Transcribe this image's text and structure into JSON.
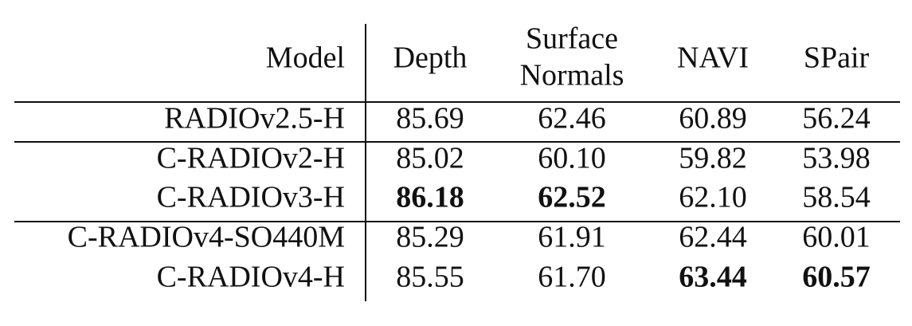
{
  "table": {
    "header": [
      "Model",
      "Depth",
      [
        "Surface",
        "Normals"
      ],
      "NAVI",
      "SPair"
    ],
    "rows": [
      {
        "model": "RADIOv2.5-H",
        "values": [
          "85.69",
          "62.46",
          "60.89",
          "56.24"
        ],
        "bold": [
          false,
          false,
          false,
          false
        ]
      },
      {
        "model": "C-RADIOv2-H",
        "values": [
          "85.02",
          "60.10",
          "59.82",
          "53.98"
        ],
        "bold": [
          false,
          false,
          false,
          false
        ]
      },
      {
        "model": "C-RADIOv3-H",
        "values": [
          "86.18",
          "62.52",
          "62.10",
          "58.54"
        ],
        "bold": [
          true,
          true,
          false,
          false
        ]
      },
      {
        "model": "C-RADIOv4-SO440M",
        "values": [
          "85.29",
          "61.91",
          "62.44",
          "60.01"
        ],
        "bold": [
          false,
          false,
          false,
          false
        ]
      },
      {
        "model": "C-RADIOv4-H",
        "values": [
          "85.55",
          "61.70",
          "63.44",
          "60.57"
        ],
        "bold": [
          false,
          false,
          true,
          true
        ]
      }
    ]
  }
}
